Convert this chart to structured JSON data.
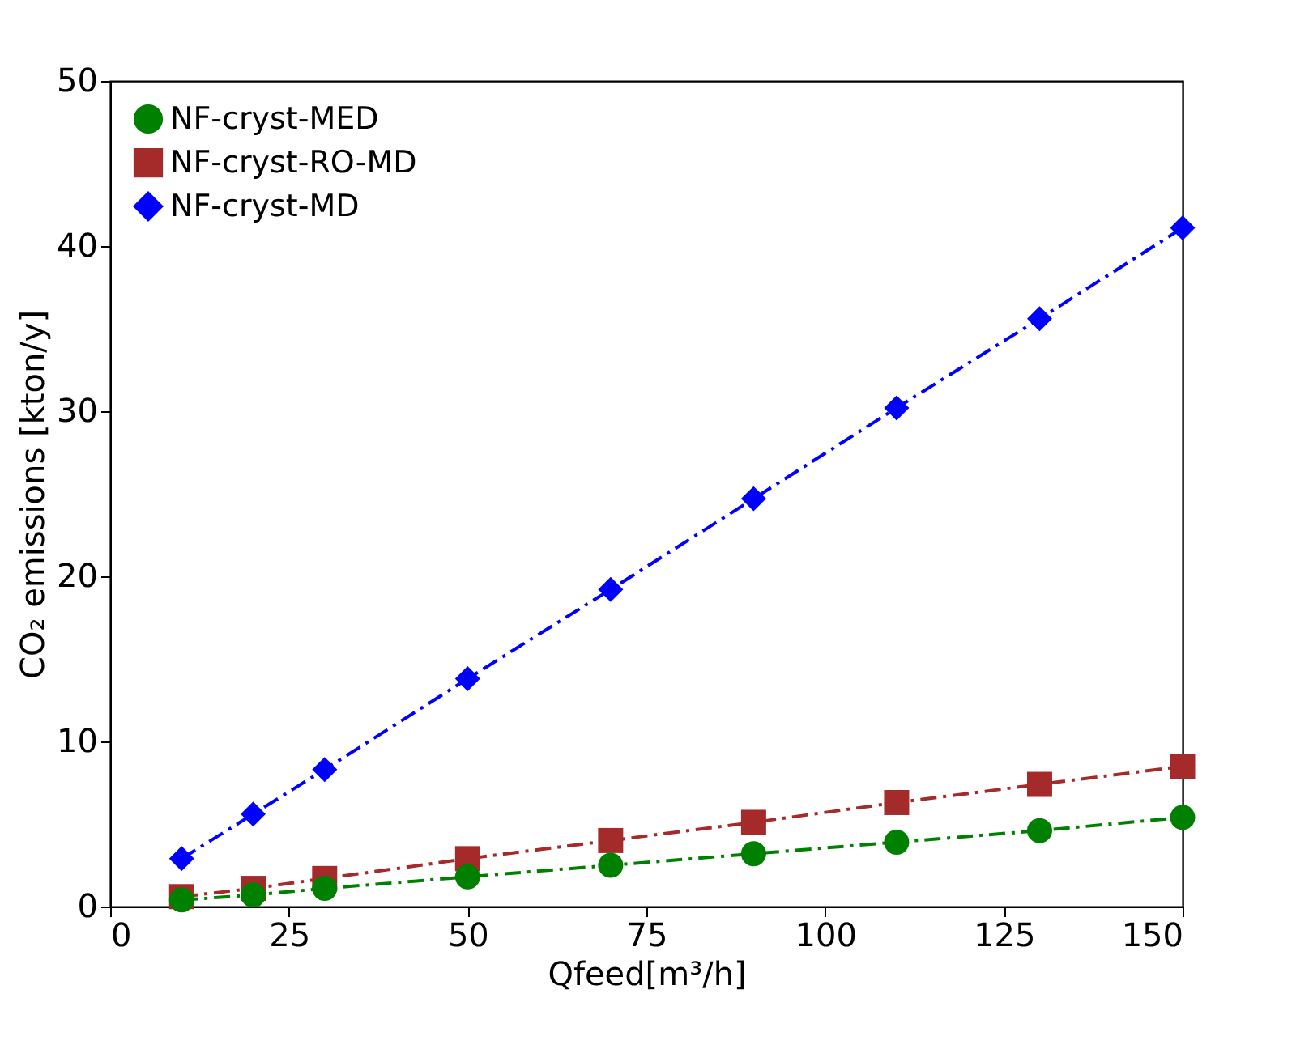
{
  "chart_data": {
    "type": "line",
    "xlabel": "Qfeed[m³/h]",
    "ylabel": "CO₂ emissions [kton/y]",
    "x": [
      10,
      20,
      30,
      50,
      70,
      90,
      110,
      130,
      150
    ],
    "series": [
      {
        "name": "NF-cryst-MED",
        "color": "#008000",
        "marker": "circle",
        "values": [
          0.4,
          0.7,
          1.1,
          1.8,
          2.5,
          3.2,
          3.9,
          4.6,
          5.4
        ]
      },
      {
        "name": "NF-cryst-RO-MD",
        "color": "#a52a2a",
        "marker": "square",
        "values": [
          0.6,
          1.1,
          1.7,
          2.9,
          4.0,
          5.1,
          6.3,
          7.4,
          8.5
        ]
      },
      {
        "name": "NF-cryst-MD",
        "color": "#0000ff",
        "marker": "diamond",
        "values": [
          2.9,
          5.6,
          8.3,
          13.8,
          19.2,
          24.7,
          30.2,
          35.6,
          41.1
        ]
      }
    ],
    "xlim": [
      0,
      150
    ],
    "xticks": [
      0,
      25,
      50,
      75,
      100,
      125,
      150
    ],
    "ylim": [
      0,
      50
    ],
    "yticks": [
      0,
      10,
      20,
      30,
      40,
      50
    ],
    "grid": false,
    "legend": "top left",
    "line_style": "dashdot"
  }
}
